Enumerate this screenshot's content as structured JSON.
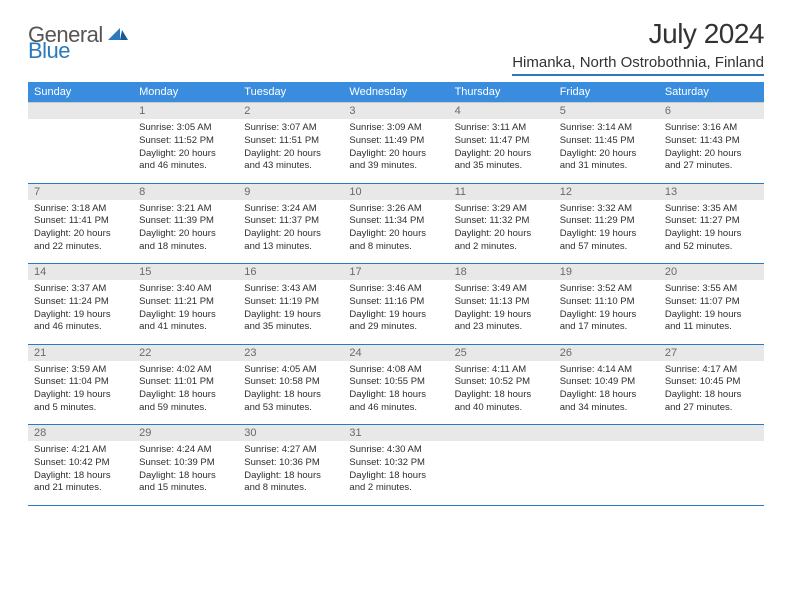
{
  "logo": {
    "part1": "General",
    "part2": "Blue"
  },
  "title": "July 2024",
  "location": "Himanka, North Ostrobothnia, Finland",
  "colors": {
    "header_bg": "#3a8dde",
    "accent": "#2b7abf",
    "daynum_bg": "#e8e8e8",
    "daynum_text": "#6a6a6a",
    "text": "#2e2e2e"
  },
  "weekdays": [
    "Sunday",
    "Monday",
    "Tuesday",
    "Wednesday",
    "Thursday",
    "Friday",
    "Saturday"
  ],
  "weeks": [
    [
      null,
      {
        "n": "1",
        "sr": "Sunrise: 3:05 AM",
        "ss": "Sunset: 11:52 PM",
        "dl": "Daylight: 20 hours and 46 minutes."
      },
      {
        "n": "2",
        "sr": "Sunrise: 3:07 AM",
        "ss": "Sunset: 11:51 PM",
        "dl": "Daylight: 20 hours and 43 minutes."
      },
      {
        "n": "3",
        "sr": "Sunrise: 3:09 AM",
        "ss": "Sunset: 11:49 PM",
        "dl": "Daylight: 20 hours and 39 minutes."
      },
      {
        "n": "4",
        "sr": "Sunrise: 3:11 AM",
        "ss": "Sunset: 11:47 PM",
        "dl": "Daylight: 20 hours and 35 minutes."
      },
      {
        "n": "5",
        "sr": "Sunrise: 3:14 AM",
        "ss": "Sunset: 11:45 PM",
        "dl": "Daylight: 20 hours and 31 minutes."
      },
      {
        "n": "6",
        "sr": "Sunrise: 3:16 AM",
        "ss": "Sunset: 11:43 PM",
        "dl": "Daylight: 20 hours and 27 minutes."
      }
    ],
    [
      {
        "n": "7",
        "sr": "Sunrise: 3:18 AM",
        "ss": "Sunset: 11:41 PM",
        "dl": "Daylight: 20 hours and 22 minutes."
      },
      {
        "n": "8",
        "sr": "Sunrise: 3:21 AM",
        "ss": "Sunset: 11:39 PM",
        "dl": "Daylight: 20 hours and 18 minutes."
      },
      {
        "n": "9",
        "sr": "Sunrise: 3:24 AM",
        "ss": "Sunset: 11:37 PM",
        "dl": "Daylight: 20 hours and 13 minutes."
      },
      {
        "n": "10",
        "sr": "Sunrise: 3:26 AM",
        "ss": "Sunset: 11:34 PM",
        "dl": "Daylight: 20 hours and 8 minutes."
      },
      {
        "n": "11",
        "sr": "Sunrise: 3:29 AM",
        "ss": "Sunset: 11:32 PM",
        "dl": "Daylight: 20 hours and 2 minutes."
      },
      {
        "n": "12",
        "sr": "Sunrise: 3:32 AM",
        "ss": "Sunset: 11:29 PM",
        "dl": "Daylight: 19 hours and 57 minutes."
      },
      {
        "n": "13",
        "sr": "Sunrise: 3:35 AM",
        "ss": "Sunset: 11:27 PM",
        "dl": "Daylight: 19 hours and 52 minutes."
      }
    ],
    [
      {
        "n": "14",
        "sr": "Sunrise: 3:37 AM",
        "ss": "Sunset: 11:24 PM",
        "dl": "Daylight: 19 hours and 46 minutes."
      },
      {
        "n": "15",
        "sr": "Sunrise: 3:40 AM",
        "ss": "Sunset: 11:21 PM",
        "dl": "Daylight: 19 hours and 41 minutes."
      },
      {
        "n": "16",
        "sr": "Sunrise: 3:43 AM",
        "ss": "Sunset: 11:19 PM",
        "dl": "Daylight: 19 hours and 35 minutes."
      },
      {
        "n": "17",
        "sr": "Sunrise: 3:46 AM",
        "ss": "Sunset: 11:16 PM",
        "dl": "Daylight: 19 hours and 29 minutes."
      },
      {
        "n": "18",
        "sr": "Sunrise: 3:49 AM",
        "ss": "Sunset: 11:13 PM",
        "dl": "Daylight: 19 hours and 23 minutes."
      },
      {
        "n": "19",
        "sr": "Sunrise: 3:52 AM",
        "ss": "Sunset: 11:10 PM",
        "dl": "Daylight: 19 hours and 17 minutes."
      },
      {
        "n": "20",
        "sr": "Sunrise: 3:55 AM",
        "ss": "Sunset: 11:07 PM",
        "dl": "Daylight: 19 hours and 11 minutes."
      }
    ],
    [
      {
        "n": "21",
        "sr": "Sunrise: 3:59 AM",
        "ss": "Sunset: 11:04 PM",
        "dl": "Daylight: 19 hours and 5 minutes."
      },
      {
        "n": "22",
        "sr": "Sunrise: 4:02 AM",
        "ss": "Sunset: 11:01 PM",
        "dl": "Daylight: 18 hours and 59 minutes."
      },
      {
        "n": "23",
        "sr": "Sunrise: 4:05 AM",
        "ss": "Sunset: 10:58 PM",
        "dl": "Daylight: 18 hours and 53 minutes."
      },
      {
        "n": "24",
        "sr": "Sunrise: 4:08 AM",
        "ss": "Sunset: 10:55 PM",
        "dl": "Daylight: 18 hours and 46 minutes."
      },
      {
        "n": "25",
        "sr": "Sunrise: 4:11 AM",
        "ss": "Sunset: 10:52 PM",
        "dl": "Daylight: 18 hours and 40 minutes."
      },
      {
        "n": "26",
        "sr": "Sunrise: 4:14 AM",
        "ss": "Sunset: 10:49 PM",
        "dl": "Daylight: 18 hours and 34 minutes."
      },
      {
        "n": "27",
        "sr": "Sunrise: 4:17 AM",
        "ss": "Sunset: 10:45 PM",
        "dl": "Daylight: 18 hours and 27 minutes."
      }
    ],
    [
      {
        "n": "28",
        "sr": "Sunrise: 4:21 AM",
        "ss": "Sunset: 10:42 PM",
        "dl": "Daylight: 18 hours and 21 minutes."
      },
      {
        "n": "29",
        "sr": "Sunrise: 4:24 AM",
        "ss": "Sunset: 10:39 PM",
        "dl": "Daylight: 18 hours and 15 minutes."
      },
      {
        "n": "30",
        "sr": "Sunrise: 4:27 AM",
        "ss": "Sunset: 10:36 PM",
        "dl": "Daylight: 18 hours and 8 minutes."
      },
      {
        "n": "31",
        "sr": "Sunrise: 4:30 AM",
        "ss": "Sunset: 10:32 PM",
        "dl": "Daylight: 18 hours and 2 minutes."
      },
      null,
      null,
      null
    ]
  ]
}
